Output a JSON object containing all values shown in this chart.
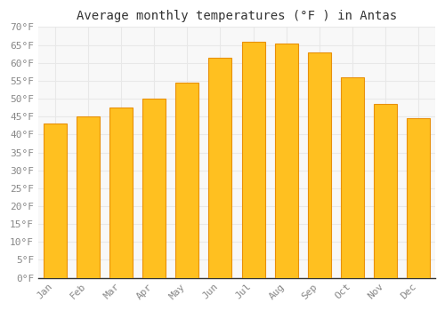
{
  "title": "Average monthly temperatures (°F ) in Antas",
  "months": [
    "Jan",
    "Feb",
    "Mar",
    "Apr",
    "May",
    "Jun",
    "Jul",
    "Aug",
    "Sep",
    "Oct",
    "Nov",
    "Dec"
  ],
  "values": [
    43,
    45,
    47.5,
    50,
    54.5,
    61.5,
    66,
    65.5,
    63,
    56,
    48.5,
    44.5
  ],
  "bar_color": "#FFC020",
  "bar_edge_color": "#E8900A",
  "ylim": [
    0,
    70
  ],
  "yticks": [
    0,
    5,
    10,
    15,
    20,
    25,
    30,
    35,
    40,
    45,
    50,
    55,
    60,
    65,
    70
  ],
  "background_color": "#ffffff",
  "plot_bg_color": "#f8f8f8",
  "grid_color": "#e8e8e8",
  "title_fontsize": 10,
  "tick_fontsize": 8,
  "tick_color": "#888888",
  "font_family": "monospace"
}
